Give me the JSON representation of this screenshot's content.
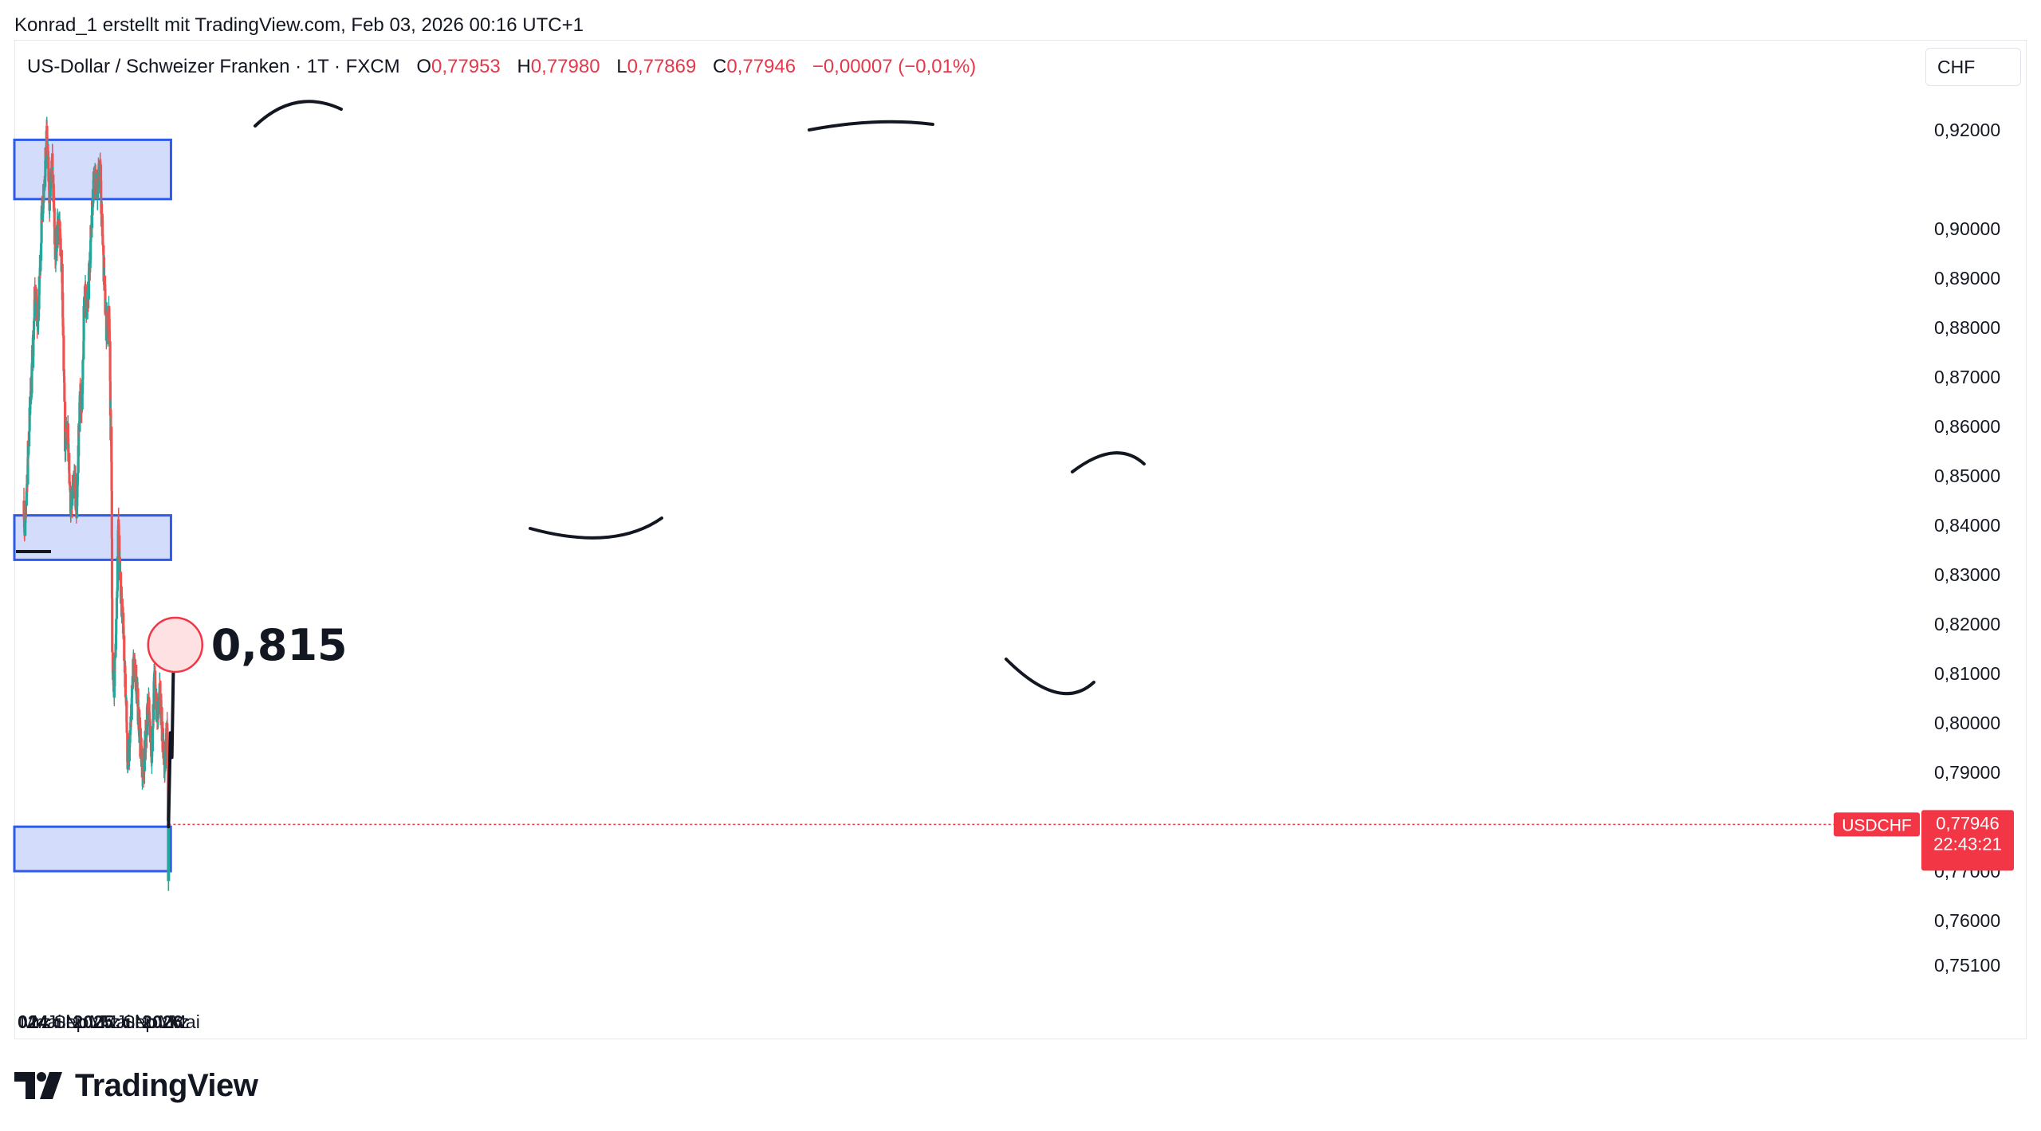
{
  "header": {
    "author_line": "Konrad_1 erstellt mit TradingView.com, Feb 03, 2026 00:16 UTC+1"
  },
  "legend": {
    "symbol_line": "US-Dollar / Schweizer Franken · 1T · FXCM",
    "open_label": "O",
    "open": "0,77953",
    "high_label": "H",
    "high": "0,77980",
    "low_label": "L",
    "low": "0,77869",
    "close_label": "C",
    "close": "0,77946",
    "change": "−0,00007 (−0,01%)"
  },
  "currency_button": "CHF",
  "price_tag": {
    "symbol": "USDCHF",
    "price": "0,77946",
    "countdown": "22:43:21"
  },
  "target_label": "0,815",
  "branding": {
    "logo_text": "TradingView"
  },
  "colors": {
    "up": "#26a69a",
    "down": "#ef5350",
    "zone_fill": "#d4dcfc",
    "zone_border": "#2f5bea",
    "price_tag": "#f23645",
    "target_circle_fill": "#fde1e3",
    "target_circle_stroke": "#f23645"
  },
  "chart_data": {
    "type": "candlestick",
    "title": "US-Dollar / Schweizer Franken · 1T · FXCM",
    "xlabel": "",
    "ylabel": "",
    "currency": "CHF",
    "y_ticks": [
      "0,92000",
      "0,90000",
      "0,89000",
      "0,88000",
      "0,87000",
      "0,86000",
      "0,85000",
      "0,84000",
      "0,83000",
      "0,82000",
      "0,81000",
      "0,80000",
      "0,79000",
      "0,77000",
      "0,76000",
      "0,75100"
    ],
    "y_tick_values": [
      0.92,
      0.9,
      0.89,
      0.88,
      0.87,
      0.86,
      0.85,
      0.84,
      0.83,
      0.82,
      0.81,
      0.8,
      0.79,
      0.77,
      0.76,
      0.751
    ],
    "x_ticks": [
      {
        "label": "024",
        "date": "2024-01-01",
        "bold": true
      },
      {
        "label": "Mrz",
        "date": "2024-03-01",
        "bold": false
      },
      {
        "label": "Mai",
        "date": "2024-05-01",
        "bold": false
      },
      {
        "label": "Jul",
        "date": "2024-07-01",
        "bold": false
      },
      {
        "label": "Sep",
        "date": "2024-09-01",
        "bold": false
      },
      {
        "label": "Nov",
        "date": "2024-11-01",
        "bold": false
      },
      {
        "label": "2025",
        "date": "2025-01-01",
        "bold": true
      },
      {
        "label": "Mrz",
        "date": "2025-03-01",
        "bold": false
      },
      {
        "label": "Mai",
        "date": "2025-05-01",
        "bold": false
      },
      {
        "label": "Jul",
        "date": "2025-07-01",
        "bold": false
      },
      {
        "label": "Sep",
        "date": "2025-09-01",
        "bold": false
      },
      {
        "label": "Nov",
        "date": "2025-11-01",
        "bold": false
      },
      {
        "label": "2026",
        "date": "2026-01-01",
        "bold": true
      },
      {
        "label": "Mrz",
        "date": "2026-03-01",
        "bold": false
      },
      {
        "label": "Mai",
        "date": "2026-05-01",
        "bold": false
      }
    ],
    "price_path": [
      {
        "date": "2024-01-01",
        "close": 0.845
      },
      {
        "date": "2024-01-05",
        "close": 0.836
      },
      {
        "date": "2024-01-20",
        "close": 0.852
      },
      {
        "date": "2024-02-05",
        "close": 0.866
      },
      {
        "date": "2024-02-20",
        "close": 0.878
      },
      {
        "date": "2024-02-28",
        "close": 0.887
      },
      {
        "date": "2024-03-15",
        "close": 0.88
      },
      {
        "date": "2024-04-05",
        "close": 0.903
      },
      {
        "date": "2024-04-25",
        "close": 0.914
      },
      {
        "date": "2024-05-01",
        "close": 0.919
      },
      {
        "date": "2024-05-15",
        "close": 0.906
      },
      {
        "date": "2024-05-31",
        "close": 0.913
      },
      {
        "date": "2024-06-15",
        "close": 0.893
      },
      {
        "date": "2024-07-01",
        "close": 0.902
      },
      {
        "date": "2024-07-20",
        "close": 0.893
      },
      {
        "date": "2024-08-05",
        "close": 0.857
      },
      {
        "date": "2024-08-20",
        "close": 0.858
      },
      {
        "date": "2024-09-05",
        "close": 0.843
      },
      {
        "date": "2024-09-25",
        "close": 0.849
      },
      {
        "date": "2024-10-05",
        "close": 0.842
      },
      {
        "date": "2024-10-20",
        "close": 0.864
      },
      {
        "date": "2024-11-05",
        "close": 0.866
      },
      {
        "date": "2024-11-15",
        "close": 0.888
      },
      {
        "date": "2024-12-01",
        "close": 0.883
      },
      {
        "date": "2024-12-15",
        "close": 0.895
      },
      {
        "date": "2025-01-05",
        "close": 0.912
      },
      {
        "date": "2025-01-20",
        "close": 0.907
      },
      {
        "date": "2025-02-05",
        "close": 0.913
      },
      {
        "date": "2025-02-20",
        "close": 0.897
      },
      {
        "date": "2025-03-10",
        "close": 0.88
      },
      {
        "date": "2025-03-25",
        "close": 0.882
      },
      {
        "date": "2025-04-02",
        "close": 0.862
      },
      {
        "date": "2025-04-08",
        "close": 0.848
      },
      {
        "date": "2025-04-11",
        "close": 0.812
      },
      {
        "date": "2025-04-21",
        "close": 0.808
      },
      {
        "date": "2025-05-05",
        "close": 0.823
      },
      {
        "date": "2025-05-13",
        "close": 0.841
      },
      {
        "date": "2025-05-25",
        "close": 0.828
      },
      {
        "date": "2025-06-10",
        "close": 0.818
      },
      {
        "date": "2025-06-25",
        "close": 0.802
      },
      {
        "date": "2025-07-01",
        "close": 0.791
      },
      {
        "date": "2025-07-15",
        "close": 0.797
      },
      {
        "date": "2025-07-31",
        "close": 0.812
      },
      {
        "date": "2025-08-20",
        "close": 0.806
      },
      {
        "date": "2025-09-05",
        "close": 0.797
      },
      {
        "date": "2025-09-20",
        "close": 0.79
      },
      {
        "date": "2025-10-05",
        "close": 0.797
      },
      {
        "date": "2025-10-20",
        "close": 0.804
      },
      {
        "date": "2025-11-05",
        "close": 0.794
      },
      {
        "date": "2025-11-20",
        "close": 0.809
      },
      {
        "date": "2025-12-05",
        "close": 0.801
      },
      {
        "date": "2025-12-20",
        "close": 0.806
      },
      {
        "date": "2026-01-05",
        "close": 0.795
      },
      {
        "date": "2026-01-15",
        "close": 0.791
      },
      {
        "date": "2026-01-25",
        "close": 0.801
      },
      {
        "date": "2026-01-29",
        "close": 0.79
      },
      {
        "date": "2026-01-31",
        "close": 0.766
      },
      {
        "date": "2026-02-02",
        "close": 0.77946
      }
    ],
    "last": {
      "open": 0.77953,
      "high": 0.7798,
      "low": 0.77869,
      "close": 0.77946,
      "change": -7e-05,
      "change_pct": -0.01
    },
    "zones": [
      {
        "from_date": "2024-01-01",
        "to_date": "2026-02-15",
        "low": 0.906,
        "high": 0.918
      },
      {
        "from_date": "2024-01-01",
        "to_date": "2026-02-15",
        "low": 0.833,
        "high": 0.842
      },
      {
        "from_date": "2024-01-01",
        "to_date": "2026-02-14",
        "low": 0.77,
        "high": 0.779
      }
    ],
    "projection": [
      {
        "date": "2026-02-02",
        "value": 0.779
      },
      {
        "date": "2026-02-12",
        "value": 0.798
      },
      {
        "date": "2026-02-20",
        "value": 0.793
      },
      {
        "date": "2026-03-01",
        "value": 0.814
      }
    ],
    "target": {
      "date": "2026-03-01",
      "value": 0.815
    }
  }
}
